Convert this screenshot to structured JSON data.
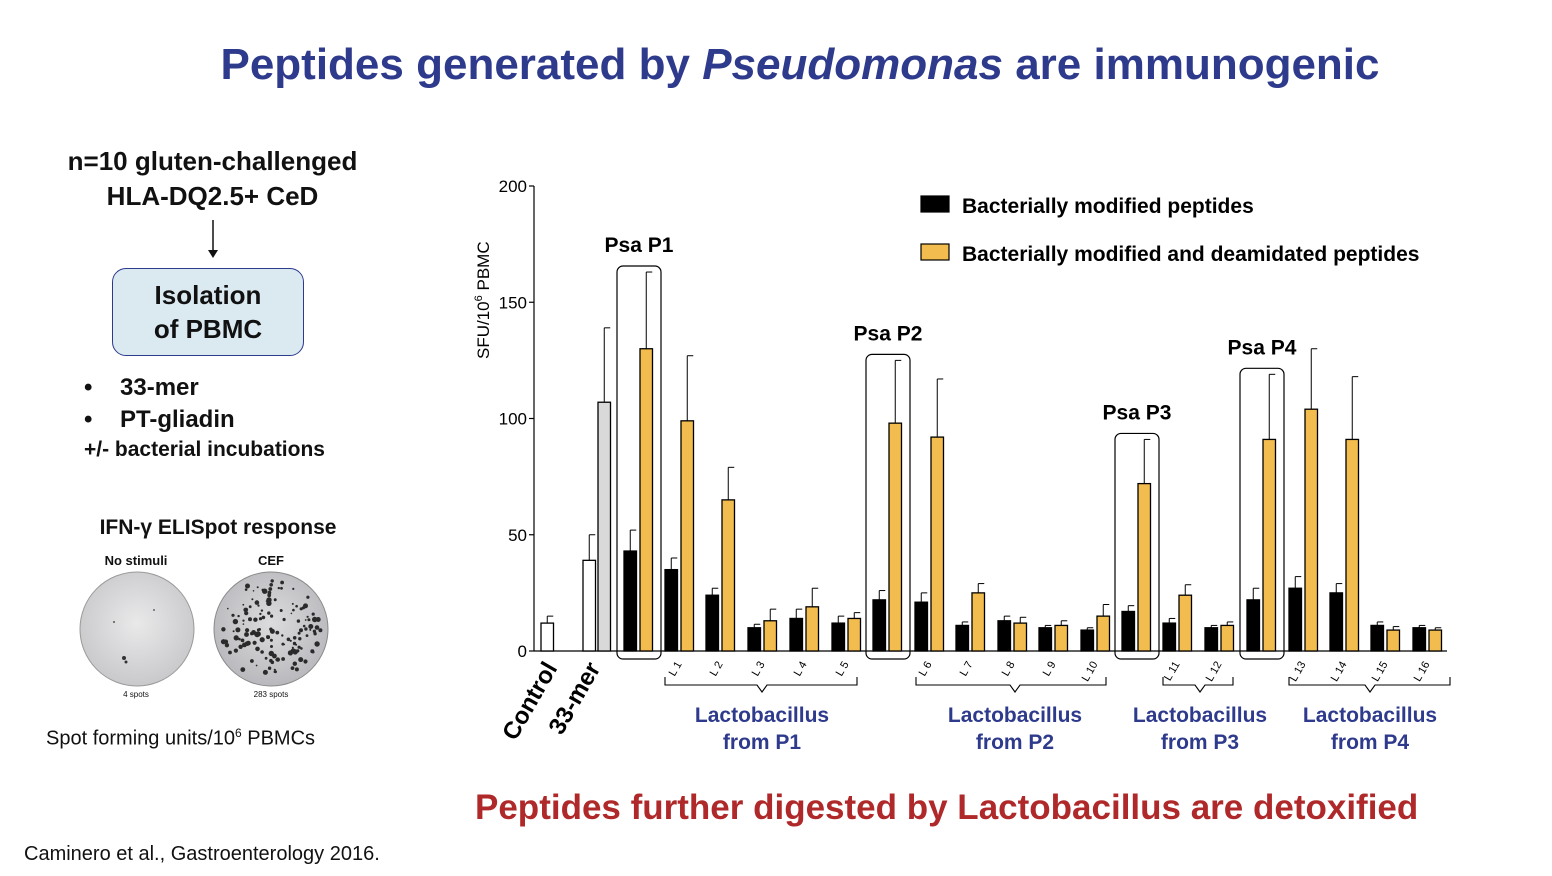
{
  "slide": {
    "title_part1": "Peptides generated by",
    "title_italic": "Pseudomonas",
    "title_part2": "are immunogenic",
    "cohort_line1": "n=10 gluten-challenged",
    "cohort_line2": "HLA-DQ2.5+ CeD",
    "box_line1": "Isolation",
    "box_line2": "of PBMC",
    "bullets": [
      "33-mer",
      "PT-gliadin"
    ],
    "bullet_glyph": "•",
    "incubation": "+/- bacterial incubations",
    "elispot_title": "IFN-γ ELISpot response",
    "wells": [
      {
        "label": "No stimuli",
        "count": "4 spots"
      },
      {
        "label": "CEF",
        "count": "283 spots"
      }
    ],
    "spot_units_prefix": "Spot forming units/10",
    "spot_units_sup": "6",
    "spot_units_suffix": " PBMCs",
    "conclusion": "Peptides further digested by Lactobacillus are detoxified",
    "citation": "Caminero et al., Gastroenterology 2016."
  },
  "colors": {
    "title": "#2e3a8c",
    "conclusion": "#b0292a",
    "black_bar": "#000000",
    "orange_bar": "#f2bc4e",
    "grey_bar": "#d9d9d9",
    "group_label": "#2e3a8c",
    "box_fill": "#dbe9f1"
  },
  "chart_data": {
    "type": "bar",
    "ylabel_prefix": "SFU/10",
    "ylabel_sup": "6",
    "ylabel_suffix": " PBMC",
    "ylim": [
      0,
      200
    ],
    "yticks": [
      0,
      50,
      100,
      150,
      200
    ],
    "legend": [
      {
        "name": "Bacterially modified peptides",
        "color": "#000000"
      },
      {
        "name": "Bacterially modified and deamidated peptides",
        "color": "#f2bc4e"
      }
    ],
    "legend_position": "top-right",
    "controls": [
      {
        "label": "Control",
        "value": 12,
        "error": 3,
        "style": "white"
      },
      {
        "label": "33-mer",
        "values": [
          39,
          107
        ],
        "errors": [
          11,
          32
        ],
        "styles": [
          "white",
          "grey"
        ]
      }
    ],
    "categories": [
      "Psa P1",
      "L 1",
      "L 2",
      "L 3",
      "L 4",
      "L 5",
      "Psa P2",
      "L 6",
      "L 7",
      "L 8",
      "L 9",
      "L 10",
      "Psa P3",
      "L 11",
      "L 12",
      "Psa P4",
      "L 13",
      "L 14",
      "L 15",
      "L 16"
    ],
    "series": [
      {
        "name": "Bacterially modified peptides",
        "values": [
          43,
          35,
          24,
          10,
          14,
          12,
          22,
          21,
          11,
          13,
          10,
          9,
          17,
          12,
          10,
          22,
          27,
          25,
          11,
          10
        ],
        "errors": [
          9,
          5,
          3,
          1.5,
          4,
          3,
          4,
          4,
          1.5,
          2,
          1,
          1,
          2.5,
          2,
          1,
          5,
          5,
          4,
          1.5,
          1
        ]
      },
      {
        "name": "Bacterially modified and deamidated peptides",
        "values": [
          130,
          99,
          65,
          13,
          19,
          14,
          98,
          92,
          25,
          12,
          11,
          15,
          72,
          24,
          11,
          91,
          104,
          91,
          9,
          9
        ],
        "errors": [
          33,
          28,
          14,
          5,
          8,
          2.5,
          27,
          25,
          4,
          2.5,
          2,
          5,
          19,
          4.5,
          1.5,
          28,
          26,
          27,
          1.5,
          1
        ]
      }
    ],
    "boxed_labels": [
      "Psa P1",
      "Psa P2",
      "Psa P3",
      "Psa P4"
    ],
    "group_labels": [
      {
        "line1": "Lactobacillus",
        "line2": "from P1"
      },
      {
        "line1": "Lactobacillus",
        "line2": "from P2"
      },
      {
        "line1": "Lactobacillus",
        "line2": "from P3"
      },
      {
        "line1": "Lactobacillus",
        "line2": "from P4"
      }
    ]
  }
}
